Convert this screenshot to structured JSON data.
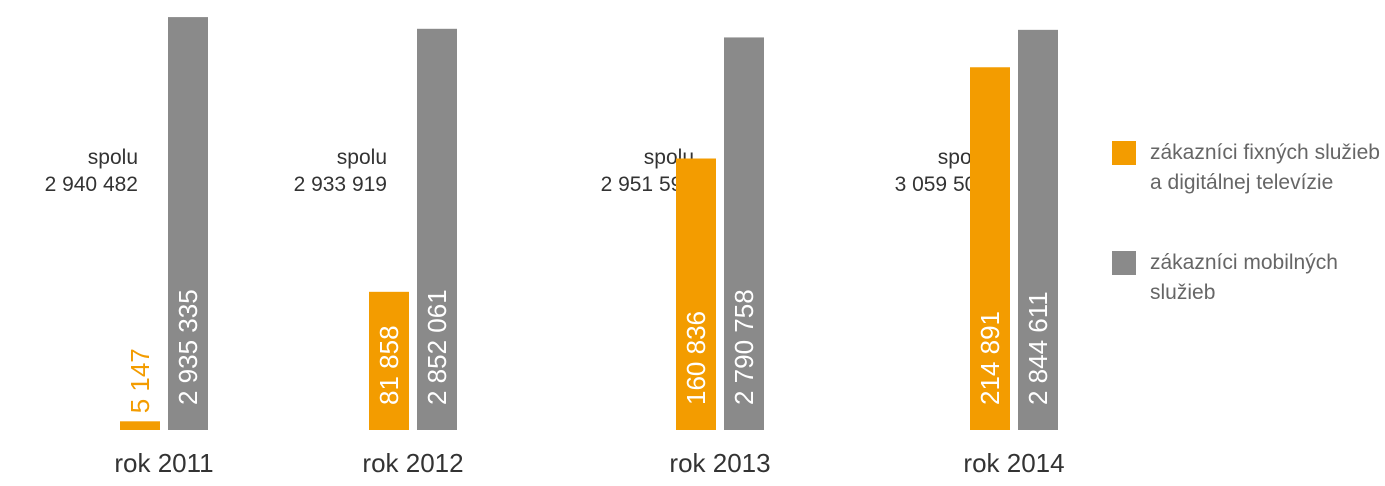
{
  "chart_data": {
    "type": "bar",
    "categories": [
      "rok 2011",
      "rok 2012",
      "rok 2013",
      "rok 2014"
    ],
    "total_label": "spolu",
    "totals": [
      "2 940 482",
      "2 933 919",
      "2 951 594",
      "3 059 502"
    ],
    "series": [
      {
        "name": "zákazníci fixných služieb a digitálnej televízie",
        "color": "#f39c00",
        "axis": "y2",
        "values": [
          5147,
          81858,
          160836,
          214891
        ],
        "value_labels": [
          "5 147",
          "81 858",
          "160 836",
          "214 891"
        ]
      },
      {
        "name": "zákazníci mobilných služieb",
        "color": "#8a8a8a",
        "values": [
          2935335,
          2852061,
          2790758,
          2844611
        ],
        "value_labels": [
          "2 935 335",
          "2 852 061",
          "2 790 758",
          "2 844 611"
        ]
      }
    ],
    "ylim": [
      0,
      3000000
    ],
    "y2lim": [
      0,
      250000
    ],
    "legend": "right"
  }
}
